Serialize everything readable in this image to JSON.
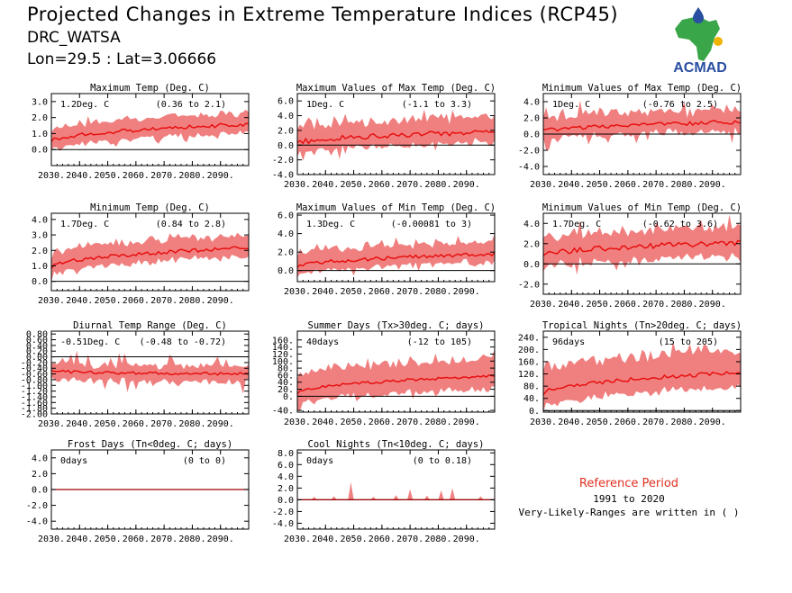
{
  "header": {
    "title": "Projected Changes in Extreme Temperature Indices (RCP45)",
    "subtitle": "DRC_WATSA",
    "location": "Lon=29.5 : Lat=3.06666"
  },
  "logo": {
    "text": "ACMAD",
    "colors": {
      "africa": "#3aa64a",
      "text": "#2a4fa0",
      "drop": "#2a4fa0",
      "sun": "#f0b400"
    }
  },
  "reference": {
    "title": "Reference Period",
    "period": "1991 to 2020",
    "note": "Very-Likely-Ranges are written in ( )"
  },
  "colors": {
    "band": "#f08080",
    "line": "#e81010",
    "zero": "#000000"
  },
  "chart_data": [
    {
      "id": "txx-mean",
      "type": "area",
      "title": "Maximum Temp (Deg. C)",
      "change": "1.2Deg. C",
      "range": "(0.36 to 2.1)",
      "xlim": [
        2030,
        2100
      ],
      "xticks": [
        2030,
        2040,
        2050,
        2060,
        2070,
        2080,
        2090
      ],
      "xticklabels": [
        "2030.",
        "2040.",
        "2050.",
        "2060.",
        "2070.",
        "2080.",
        "2090."
      ],
      "ylim": [
        -1.0,
        3.5
      ],
      "yticks": [
        0,
        1,
        2,
        3
      ],
      "yticklabels": [
        "0.0",
        "1.0",
        "2.0",
        "3.0"
      ],
      "start": 0.5,
      "end": 1.6,
      "bandLo": 0.6,
      "bandHi": 0.8,
      "noise": 0.12,
      "spikes": 0.4
    },
    {
      "id": "txx",
      "type": "area",
      "title": "Maximum Values of Max Temp (Deg. C)",
      "change": "1Deg. C",
      "range": "(-1.1 to 3.3)",
      "xlim": [
        2030,
        2100
      ],
      "xticks": [
        2030,
        2040,
        2050,
        2060,
        2070,
        2080,
        2090
      ],
      "xticklabels": [
        "2030.",
        "2040.",
        "2050.",
        "2060.",
        "2070.",
        "2080.",
        "2090."
      ],
      "ylim": [
        -4.0,
        7.0
      ],
      "yticks": [
        -4,
        -2,
        0,
        2,
        4,
        6
      ],
      "yticklabels": [
        "-4.0",
        "-2.0",
        "0.0",
        "2.0",
        "4.0",
        "6.0"
      ],
      "start": 0.2,
      "end": 1.8,
      "bandLo": 1.5,
      "bandHi": 2.2,
      "noise": 0.35,
      "spikes": 1.5
    },
    {
      "id": "txn",
      "type": "area",
      "title": "Minimum Values of Max Temp (Deg. C)",
      "change": "1Deg. C",
      "range": "(-0.76 to 2.5)",
      "xlim": [
        2030,
        2100
      ],
      "xticks": [
        2030,
        2040,
        2050,
        2060,
        2070,
        2080,
        2090
      ],
      "xticklabels": [
        "2030.",
        "2040.",
        "2050.",
        "2060.",
        "2070.",
        "2080.",
        "2090."
      ],
      "ylim": [
        -5.0,
        5.0
      ],
      "yticks": [
        -4,
        -2,
        0,
        2,
        4
      ],
      "yticklabels": [
        "-4.0",
        "-2.0",
        "0.0",
        "2.0",
        "4.0"
      ],
      "start": 0.3,
      "end": 1.5,
      "bandLo": 1.0,
      "bandHi": 1.5,
      "noise": 0.25,
      "spikes": 2.2
    },
    {
      "id": "tn-mean",
      "type": "area",
      "title": "Minimum Temp (Deg. C)",
      "change": "1.7Deg. C",
      "range": "(0.84 to 2.8)",
      "xlim": [
        2030,
        2100
      ],
      "xticks": [
        2030,
        2040,
        2050,
        2060,
        2070,
        2080,
        2090
      ],
      "xticklabels": [
        "2030.",
        "2040.",
        "2050.",
        "2060.",
        "2070.",
        "2080.",
        "2090."
      ],
      "ylim": [
        -0.6,
        4.4
      ],
      "yticks": [
        0,
        1,
        2,
        3,
        4
      ],
      "yticklabels": [
        "0.0",
        "1.0",
        "2.0",
        "3.0",
        "4.0"
      ],
      "start": 0.9,
      "end": 2.2,
      "bandLo": 0.6,
      "bandHi": 0.9,
      "noise": 0.12,
      "spikes": 0.5
    },
    {
      "id": "tnx",
      "type": "area",
      "title": "Maximum Values of Min Temp (Deg. C)",
      "change": "1.3Deg. C",
      "range": "(-0.00081 to 3)",
      "xlim": [
        2030,
        2100
      ],
      "xticks": [
        2030,
        2040,
        2050,
        2060,
        2070,
        2080,
        2090
      ],
      "xticklabels": [
        "2030.",
        "2040.",
        "2050.",
        "2060.",
        "2070.",
        "2080.",
        "2090."
      ],
      "ylim": [
        -1.2,
        6.2
      ],
      "yticks": [
        0,
        2,
        4,
        6
      ],
      "yticklabels": [
        "0.0",
        "2.0",
        "4.0",
        "6.0"
      ],
      "start": 0.4,
      "end": 1.8,
      "bandLo": 0.9,
      "bandHi": 1.4,
      "noise": 0.2,
      "spikes": 1.0
    },
    {
      "id": "tnn",
      "type": "area",
      "title": "Minimum Values of Min Temp (Deg. C)",
      "change": "1.7Deg. C",
      "range": "(-0.62 to 3.6)",
      "xlim": [
        2030,
        2100
      ],
      "xticks": [
        2030,
        2040,
        2050,
        2060,
        2070,
        2080,
        2090
      ],
      "xticklabels": [
        "2030.",
        "2040.",
        "2050.",
        "2060.",
        "2070.",
        "2080.",
        "2090."
      ],
      "ylim": [
        -3.0,
        5.0
      ],
      "yticks": [
        -2,
        0,
        2,
        4
      ],
      "yticklabels": [
        "-2.0",
        "0.0",
        "2.0",
        "4.0"
      ],
      "start": 0.8,
      "end": 2.1,
      "bandLo": 1.4,
      "bandHi": 1.8,
      "noise": 0.25,
      "spikes": 1.2
    },
    {
      "id": "dtr",
      "type": "area",
      "title": "Diurnal Temp Range (Deg. C)",
      "change": "-0.51Deg. C",
      "range": "(-0.48 to -0.72)",
      "xlim": [
        2030,
        2100
      ],
      "xticks": [
        2030,
        2040,
        2050,
        2060,
        2070,
        2080,
        2090
      ],
      "xticklabels": [
        "2030.",
        "2040.",
        "2050.",
        "2060.",
        "2070.",
        "2080.",
        "2090."
      ],
      "ylim": [
        -2.0,
        0.9
      ],
      "yticks": [
        0.8,
        0.6,
        0.4,
        0.2,
        0,
        -0.2,
        -0.4,
        -0.6,
        -0.8,
        -1.0,
        -1.2,
        -1.4,
        -1.6,
        -1.8,
        -2.0
      ],
      "yticklabels": [
        "0.80",
        "0.60",
        "0.40",
        "0.20",
        "0.00",
        "-0.20",
        "-0.40",
        "-0.60",
        "-0.80",
        "-1.00",
        "-1.20",
        "-1.40",
        "-1.60",
        "-1.80",
        "-2.00"
      ],
      "start": -0.5,
      "end": -0.6,
      "bandLo": 0.25,
      "bandHi": 0.2,
      "noise": 0.05,
      "spikes": 0.6
    },
    {
      "id": "su",
      "type": "area",
      "title": "Summer Days (Tx>30deg. C; days)",
      "change": "40days",
      "range": "(-12 to 105)",
      "xlim": [
        2030,
        2100
      ],
      "xticks": [
        2030,
        2040,
        2050,
        2060,
        2070,
        2080,
        2090
      ],
      "xticklabels": [
        "2030.",
        "2040.",
        "2050.",
        "2060.",
        "2070.",
        "2080.",
        "2090."
      ],
      "ylim": [
        -45,
        185
      ],
      "yticks": [
        -40,
        0,
        20,
        40,
        60,
        80,
        100,
        120,
        140,
        160
      ],
      "yticklabels": [
        "-40.",
        "0.",
        "20.",
        "40.",
        "60.",
        "80.",
        "100.",
        "120.",
        "140.",
        "160."
      ],
      "start": 10,
      "end": 58,
      "bandLo": 40,
      "bandHi": 60,
      "noise": 4,
      "spikes": 20
    },
    {
      "id": "tr",
      "type": "area",
      "title": "Tropical Nights (Tn>20deg. C; days)",
      "change": "96days",
      "range": "(15 to 205)",
      "xlim": [
        2030,
        2100
      ],
      "xticks": [
        2030,
        2040,
        2050,
        2060,
        2070,
        2080,
        2090
      ],
      "xticklabels": [
        "2030.",
        "2040.",
        "2050.",
        "2060.",
        "2070.",
        "2080.",
        "2090."
      ],
      "ylim": [
        -5,
        260
      ],
      "yticks": [
        0,
        40,
        80,
        120,
        160,
        200,
        240
      ],
      "yticklabels": [
        "0.",
        "40.",
        "80.",
        "120.",
        "160.",
        "200.",
        "240."
      ],
      "start": 55,
      "end": 125,
      "bandLo": 55,
      "bandHi": 95,
      "noise": 6,
      "spikes": 20
    },
    {
      "id": "fd",
      "type": "area",
      "title": "Frost Days (Tn<0deg. C; days)",
      "change": "0days",
      "range": "(0 to 0)",
      "xlim": [
        2030,
        2100
      ],
      "xticks": [
        2030,
        2040,
        2050,
        2060,
        2070,
        2080,
        2090
      ],
      "xticklabels": [
        "2030.",
        "2040.",
        "2050.",
        "2060.",
        "2070.",
        "2080.",
        "2090."
      ],
      "ylim": [
        -5.0,
        5.0
      ],
      "yticks": [
        -4,
        -2,
        0,
        2,
        4
      ],
      "yticklabels": [
        "-4.0",
        "-2.0",
        "0.0",
        "2.0",
        "4.0"
      ],
      "flat": true
    },
    {
      "id": "tn10",
      "type": "area",
      "title": "Cool Nights (Tn<10deg. C; days)",
      "change": "0days",
      "range": "(0 to 0.18)",
      "xlim": [
        2030,
        2100
      ],
      "xticks": [
        2030,
        2040,
        2050,
        2060,
        2070,
        2080,
        2090
      ],
      "xticklabels": [
        "2030.",
        "2040.",
        "2050.",
        "2060.",
        "2070.",
        "2080.",
        "2090."
      ],
      "ylim": [
        -5.0,
        8.5
      ],
      "yticks": [
        -4,
        -2,
        0,
        2,
        4,
        6,
        8
      ],
      "yticklabels": [
        "-4.0",
        "-2.0",
        "0.0",
        "2.0",
        "4.0",
        "6.0",
        "8.0"
      ],
      "blips": [
        [
          2036,
          0.5
        ],
        [
          2043,
          0.6
        ],
        [
          2049,
          3.0
        ],
        [
          2057,
          0.5
        ],
        [
          2065,
          0.8
        ],
        [
          2070,
          1.8
        ],
        [
          2076,
          0.7
        ],
        [
          2081,
          1.6
        ],
        [
          2085,
          2.0
        ],
        [
          2095,
          0.6
        ]
      ]
    }
  ]
}
